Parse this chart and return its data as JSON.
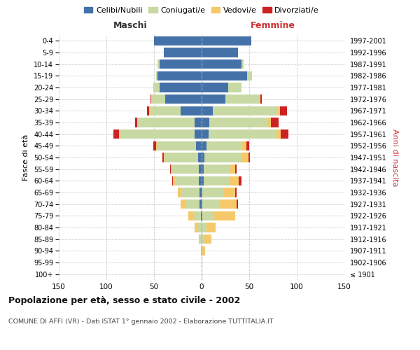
{
  "age_groups": [
    "100+",
    "95-99",
    "90-94",
    "85-89",
    "80-84",
    "75-79",
    "70-74",
    "65-69",
    "60-64",
    "55-59",
    "50-54",
    "45-49",
    "40-44",
    "35-39",
    "30-34",
    "25-29",
    "20-24",
    "15-19",
    "10-14",
    "5-9",
    "0-4"
  ],
  "birth_years": [
    "≤ 1901",
    "1902-1906",
    "1907-1911",
    "1912-1916",
    "1917-1921",
    "1922-1926",
    "1927-1931",
    "1932-1936",
    "1937-1941",
    "1942-1946",
    "1947-1951",
    "1952-1956",
    "1957-1961",
    "1962-1966",
    "1967-1971",
    "1972-1976",
    "1977-1981",
    "1982-1986",
    "1987-1991",
    "1992-1996",
    "1997-2001"
  ],
  "maschi": {
    "celibi": [
      0,
      0,
      0,
      0,
      0,
      1,
      2,
      2,
      3,
      3,
      4,
      6,
      7,
      7,
      22,
      38,
      44,
      46,
      44,
      40,
      50
    ],
    "coniugati": [
      0,
      0,
      1,
      2,
      4,
      8,
      15,
      20,
      25,
      28,
      35,
      40,
      78,
      60,
      32,
      15,
      7,
      2,
      2,
      0,
      0
    ],
    "vedovi": [
      0,
      0,
      0,
      1,
      3,
      5,
      5,
      3,
      2,
      1,
      1,
      2,
      2,
      1,
      1,
      0,
      0,
      0,
      0,
      0,
      0
    ],
    "divorziati": [
      0,
      0,
      0,
      0,
      0,
      0,
      0,
      0,
      1,
      1,
      1,
      3,
      6,
      2,
      2,
      1,
      0,
      0,
      0,
      0,
      0
    ]
  },
  "femmine": {
    "nubili": [
      0,
      0,
      0,
      0,
      0,
      1,
      1,
      1,
      2,
      2,
      3,
      5,
      7,
      8,
      12,
      25,
      28,
      48,
      42,
      38,
      52
    ],
    "coniugate": [
      0,
      0,
      1,
      3,
      5,
      12,
      18,
      22,
      27,
      28,
      38,
      38,
      72,
      62,
      68,
      36,
      14,
      5,
      2,
      0,
      0
    ],
    "vedove": [
      0,
      1,
      3,
      7,
      10,
      22,
      18,
      12,
      10,
      5,
      8,
      4,
      4,
      3,
      2,
      1,
      0,
      0,
      0,
      0,
      0
    ],
    "divorziate": [
      0,
      0,
      0,
      0,
      0,
      0,
      1,
      2,
      3,
      2,
      2,
      3,
      8,
      8,
      8,
      1,
      0,
      0,
      0,
      0,
      0
    ]
  },
  "colors": {
    "celibi": "#4472a8",
    "coniugati": "#c8d9a4",
    "vedovi": "#f5c96a",
    "divorziati": "#cc2222"
  },
  "xlim": 150,
  "title": "Popolazione per età, sesso e stato civile - 2002",
  "subtitle": "COMUNE DI AFFI (VR) - Dati ISTAT 1° gennaio 2002 - Elaborazione TUTTITALIA.IT",
  "ylabel_left": "Fasce di età",
  "ylabel_right": "Anni di nascita",
  "header_maschi": "Maschi",
  "header_femmine": "Femmine",
  "bg_color": "#ffffff",
  "grid_color": "#cccccc",
  "legend_labels": [
    "Celibi/Nubili",
    "Coniugati/e",
    "Vedovi/e",
    "Divorziati/e"
  ]
}
